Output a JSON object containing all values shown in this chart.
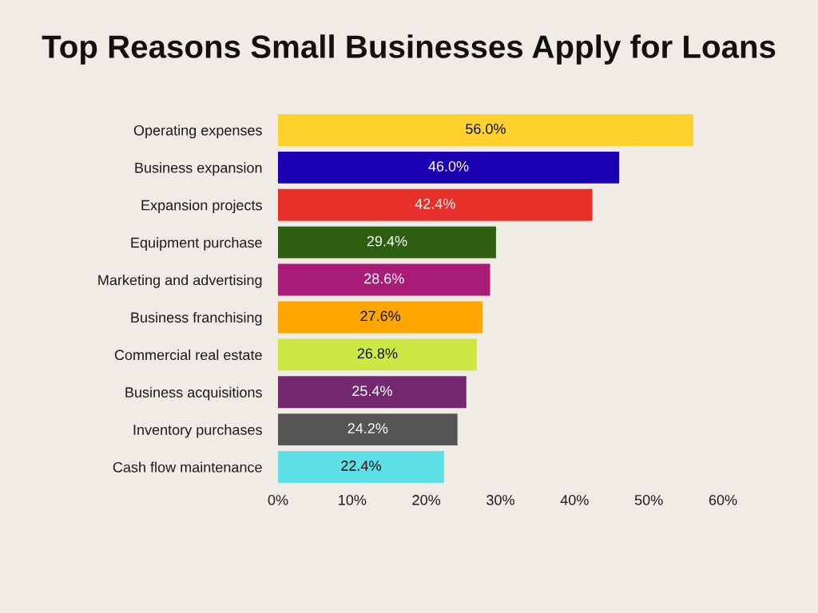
{
  "chart_data": {
    "type": "bar",
    "orientation": "horizontal",
    "title": "Top Reasons Small Businesses Apply for Loans",
    "categories": [
      "Operating expenses",
      "Business expansion",
      "Expansion projects",
      "Equipment purchase",
      "Marketing and advertising",
      "Business franchising",
      "Commercial real estate",
      "Business acquisitions",
      "Inventory purchases",
      "Cash flow maintenance"
    ],
    "values": [
      56.0,
      46.0,
      42.4,
      29.4,
      28.6,
      27.6,
      26.8,
      25.4,
      24.2,
      22.4
    ],
    "colors": [
      "#ffd22e",
      "#1a00b0",
      "#e8302a",
      "#2e5e12",
      "#a81c78",
      "#ffa500",
      "#cde842",
      "#74286e",
      "#555555",
      "#5de0e6"
    ],
    "value_labels": [
      "56.0%",
      "46.0%",
      "42.4%",
      "29.4%",
      "28.6%",
      "27.6%",
      "26.8%",
      "25.4%",
      "24.2%",
      "22.4%"
    ],
    "xlim": [
      0,
      60
    ],
    "xticks": [
      {
        "value": 0,
        "label": "0%"
      },
      {
        "value": 10,
        "label": "10%"
      },
      {
        "value": 20,
        "label": "20%"
      },
      {
        "value": 30,
        "label": "30%"
      },
      {
        "value": 40,
        "label": "40%"
      },
      {
        "value": 50,
        "label": "50%"
      },
      {
        "value": 60,
        "label": "60%"
      }
    ]
  }
}
